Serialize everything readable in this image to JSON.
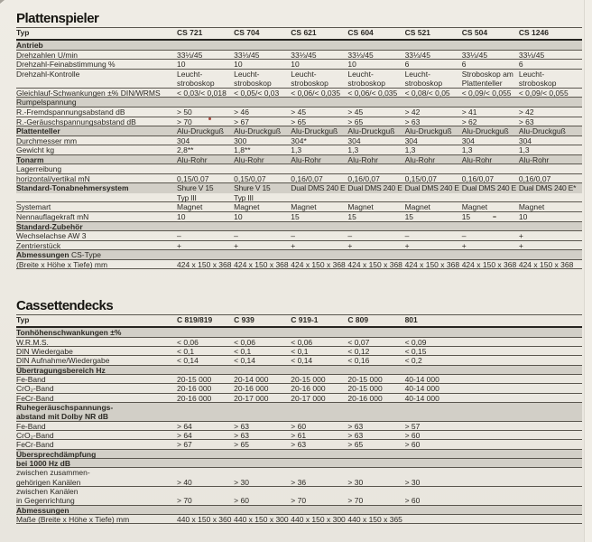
{
  "page": {
    "kind": "scanned catalog specification page",
    "paper_color": "#ece9e1",
    "bar_color": "#d2cfc7",
    "line_color": "#5a564e",
    "strong_line_color": "#262420",
    "text_color": "#2b2924"
  },
  "sections": [
    {
      "title": "Plattenspieler",
      "col_header_label": "Typ",
      "columns": [
        "CS 721",
        "CS 704",
        "CS 621",
        "CS 604",
        "CS 521",
        "CS 504",
        "CS 1246"
      ],
      "rows": [
        {
          "label": "Antrieb",
          "bold": true,
          "shade": "bar"
        },
        {
          "label": "Drehzahlen U/min",
          "values": [
            "33⅓/45",
            "33⅓/45",
            "33⅓/45",
            "33⅓/45",
            "33⅓/45",
            "33⅓/45",
            "33⅓/45"
          ]
        },
        {
          "label": "Drehzahl-Feinabstimmung %",
          "values": [
            "10",
            "10",
            "10",
            "10",
            "6",
            "6",
            "6"
          ]
        },
        {
          "label": "Drehzahl-Kontrolle",
          "lines": 2,
          "values": [
            "Leucht-",
            "Leucht-",
            "Leucht-",
            "Leucht-",
            "Leucht-",
            "Stroboskop am",
            "Leucht-"
          ],
          "values2": [
            "stroboskop",
            "stroboskop",
            "stroboskop",
            "stroboskop",
            "stroboskop",
            "Plattenteller",
            "stroboskop"
          ]
        },
        {
          "label": "Gleichlauf-Schwankungen ±% DIN/WRMS",
          "values": [
            "< 0,03/< 0,018",
            "< 0,05/< 0,03",
            "< 0,06/< 0,035",
            "< 0,06/< 0,035",
            "< 0,08/< 0,05",
            "< 0,09/< 0,055",
            "< 0,09/< 0,055"
          ]
        },
        {
          "label": "Rumpelspannung",
          "shade": "bar"
        },
        {
          "label": "R.-Fremdspannungsabstand dB",
          "values": [
            "> 50",
            "> 46",
            "> 45",
            "> 45",
            "> 42",
            "> 41",
            "> 42"
          ]
        },
        {
          "label": "R.-Geräuschspannungsabstand dB",
          "values": [
            "> 70",
            "> 67",
            "> 65",
            "> 65",
            "> 63",
            "> 62",
            "> 63"
          ]
        },
        {
          "label": "Plattenteller",
          "bold": true,
          "shade": "bar",
          "values": [
            "Alu-Druckguß",
            "Alu-Druckguß",
            "Alu-Druckguß",
            "Alu-Druckguß",
            "Alu-Druckguß",
            "Alu-Druckguß",
            "Alu-Druckguß"
          ]
        },
        {
          "label": "Durchmesser mm",
          "values": [
            "304",
            "300",
            "304*",
            "304",
            "304",
            "304",
            "304"
          ]
        },
        {
          "label": "Gewicht kg",
          "values": [
            "2,8**",
            "1,8**",
            "1,3",
            "1,3",
            "1,3",
            "1,3",
            "1,3"
          ]
        },
        {
          "label": "Tonarm",
          "bold": true,
          "shade": "bar",
          "values": [
            "Alu-Rohr",
            "Alu-Rohr",
            "Alu-Rohr",
            "Alu-Rohr",
            "Alu-Rohr",
            "Alu-Rohr",
            "Alu-Rohr"
          ]
        },
        {
          "label": "Lagerreibung"
        },
        {
          "label": "horizontal/vertikal mN",
          "values": [
            "0,15/0,07",
            "0,15/0,07",
            "0,16/0,07",
            "0,16/0,07",
            "0,15/0,07",
            "0,16/0,07",
            "0,16/0,07"
          ]
        },
        {
          "label": "Standard-Tonabnehmersystem",
          "bold": true,
          "lines": 2,
          "shade": "bar1",
          "values": [
            "Shure V 15",
            "Shure V 15",
            "Dual DMS 240 E",
            "Dual DMS 240 E",
            "Dual DMS 240 E",
            "Dual DMS 240 E",
            "Dual DMS 240 E*"
          ],
          "values2": [
            "Typ III",
            "Typ III",
            "",
            "",
            "",
            "",
            ""
          ]
        },
        {
          "label": "Systemart",
          "values": [
            "Magnet",
            "Magnet",
            "Magnet",
            "Magnet",
            "Magnet",
            "Magnet",
            "Magnet"
          ]
        },
        {
          "label": "Nennauflagekraft mN",
          "values": [
            "10",
            "10",
            "15",
            "15",
            "15",
            "15",
            "10"
          ]
        },
        {
          "label": "Standard-Zubehör",
          "bold": true,
          "shade": "bar"
        },
        {
          "label": "Wechselachse AW 3",
          "values": [
            "–",
            "–",
            "–",
            "–",
            "–",
            "–",
            "+"
          ]
        },
        {
          "label": "Zentrierstück",
          "values": [
            "+",
            "+",
            "+",
            "+",
            "+",
            "+",
            "+"
          ]
        },
        {
          "label": "Abmessungen",
          "label_suffix": "CS-Type",
          "bold": true,
          "shade": "bar"
        },
        {
          "label": "(Breite x Höhe x Tiefe) mm",
          "values": [
            "424 x 150 x 368",
            "424 x 150 x 368",
            "424 x 150 x 368",
            "424 x 150 x 368",
            "424 x 150 x 368",
            "424 x 150 x 368",
            "424 x 150 x 368"
          ]
        }
      ]
    },
    {
      "title": "Cassettendecks",
      "col_header_label": "Typ",
      "columns": [
        "C 819/819",
        "C 939",
        "C 919-1",
        "C 809",
        "801"
      ],
      "rows": [
        {
          "label": "Tonhöhenschwankungen ±%",
          "bold": true,
          "shade": "bar"
        },
        {
          "label": "W.R.M.S.",
          "values": [
            "< 0,06",
            "< 0,06",
            "< 0,06",
            "< 0,07",
            "< 0,09"
          ]
        },
        {
          "label": "DIN Wiedergabe",
          "values": [
            "< 0,1",
            "< 0,1",
            "< 0,1",
            "< 0,12",
            "< 0,15"
          ]
        },
        {
          "label": "DIN Aufnahme/Wiedergabe",
          "values": [
            "< 0,14",
            "< 0,14",
            "< 0,14",
            "< 0,16",
            "< 0,2"
          ]
        },
        {
          "label": "Übertragungsbereich Hz",
          "bold": true,
          "shade": "bar"
        },
        {
          "label": "Fe-Band",
          "values": [
            "20-15 000",
            "20-14 000",
            "20-15 000",
            "20-15 000",
            "40-14 000"
          ]
        },
        {
          "label": "CrO₂-Band",
          "values": [
            "20-16 000",
            "20-16 000",
            "20-16 000",
            "20-15 000",
            "40-14 000"
          ]
        },
        {
          "label": "FeCr-Band",
          "values": [
            "20-16 000",
            "20-17 000",
            "20-17 000",
            "20-16 000",
            "40-14 000"
          ]
        },
        {
          "label": "Ruhegeräuschspannungs-",
          "label2": "abstand mit Dolby NR dB",
          "bold": true,
          "lines": 2,
          "shade": "bar"
        },
        {
          "label": "Fe-Band",
          "values": [
            "> 64",
            "> 63",
            "> 60",
            "> 63",
            "> 57"
          ]
        },
        {
          "label": "CrO₂-Band",
          "values": [
            "> 64",
            "> 63",
            "> 61",
            "> 63",
            "> 60"
          ]
        },
        {
          "label": "FeCr-Band",
          "values": [
            "> 67",
            "> 65",
            "> 63",
            "> 65",
            "> 60"
          ]
        },
        {
          "label": "Übersprechdämpfung",
          "bold": true,
          "shade": "bar"
        },
        {
          "label": "bei 1000 Hz dB",
          "bold": true,
          "shade": "bar"
        },
        {
          "label": "zwischen zusammen-",
          "label2": "gehörigen Kanälen",
          "lines": 2,
          "values": [
            "",
            "",
            "",
            "",
            ""
          ],
          "values2": [
            "> 40",
            "> 30",
            "> 36",
            "> 30",
            "> 30"
          ]
        },
        {
          "label": "zwischen Kanälen",
          "label2": "in Gegenrichtung",
          "lines": 2,
          "values": [
            "",
            "",
            "",
            "",
            ""
          ],
          "values2": [
            "> 70",
            "> 60",
            "> 70",
            "> 70",
            "> 60"
          ]
        },
        {
          "label": "Abmessungen",
          "bold": true,
          "shade": "bar"
        },
        {
          "label": "Maße (Breite x Höhe x Tiefe) mm",
          "values": [
            "440 x 150 x 360",
            "440 x 150 x 300",
            "440 x 150 x 300",
            "440 x 150 x 365",
            ""
          ]
        }
      ]
    }
  ]
}
